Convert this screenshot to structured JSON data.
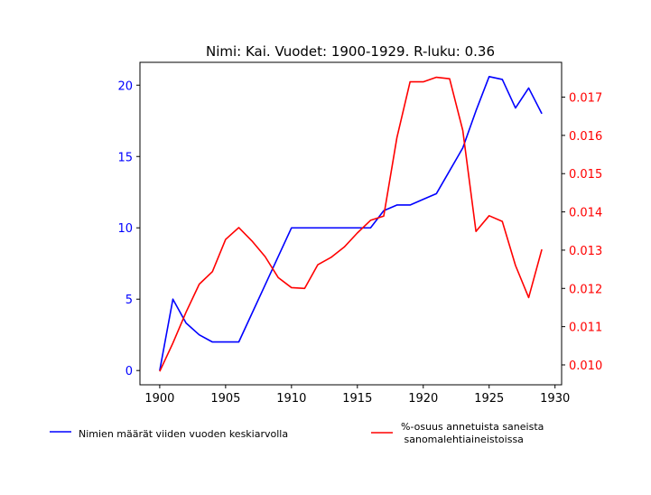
{
  "chart_data": {
    "type": "line",
    "title": "Nimi: Kai. Vuodet: 1900-1929. R-luku: 0.36",
    "xlabel": "",
    "ylabel_left": "",
    "ylabel_right": "",
    "x": [
      1900,
      1901,
      1902,
      1903,
      1904,
      1905,
      1906,
      1907,
      1908,
      1909,
      1910,
      1911,
      1912,
      1913,
      1914,
      1915,
      1916,
      1917,
      1918,
      1919,
      1920,
      1921,
      1922,
      1923,
      1924,
      1925,
      1926,
      1927,
      1928,
      1929
    ],
    "xlim": [
      1898.5,
      1930.5
    ],
    "xticks": [
      1900,
      1905,
      1910,
      1915,
      1920,
      1925,
      1930
    ],
    "left_axis": {
      "ylim": [
        -1.0,
        21.6
      ],
      "ticks": [
        0,
        5,
        10,
        15,
        20
      ],
      "color": "#0000ff"
    },
    "right_axis": {
      "ylim": [
        0.00948,
        0.01791
      ],
      "ticks": [
        0.01,
        0.011,
        0.012,
        0.013,
        0.014,
        0.015,
        0.016,
        0.017
      ],
      "tick_labels": [
        "0.010",
        "0.011",
        "0.012",
        "0.013",
        "0.014",
        "0.015",
        "0.016",
        "0.017"
      ],
      "color": "#ff0000"
    },
    "series": [
      {
        "name": "Nimien määrät viiden vuoden keskiarvolla",
        "axis": "left",
        "color": "#0000ff",
        "values": [
          0,
          5.0,
          3.33,
          2.5,
          2.0,
          2.0,
          2.0,
          4.0,
          6.0,
          8.0,
          10.0,
          10.0,
          10.0,
          10.0,
          10.0,
          10.0,
          10.0,
          11.2,
          11.6,
          11.6,
          12.0,
          12.4,
          14.0,
          15.6,
          18.2,
          20.6,
          20.4,
          18.4,
          19.8,
          18.0
        ]
      },
      {
        "name": "%-osuus annetuista saneista\n sanomalehtiaineistoissa",
        "axis": "right",
        "color": "#ff0000",
        "values": [
          0.00983,
          0.01057,
          0.01138,
          0.01211,
          0.01244,
          0.01328,
          0.01359,
          0.01324,
          0.01283,
          0.01228,
          0.01202,
          0.012,
          0.01262,
          0.01281,
          0.01308,
          0.01345,
          0.01378,
          0.01389,
          0.01594,
          0.0174,
          0.0174,
          0.01752,
          0.01748,
          0.01613,
          0.01349,
          0.0139,
          0.01375,
          0.0126,
          0.01176,
          0.01302
        ]
      }
    ],
    "legend": {
      "placement": "bottom"
    },
    "grid": false
  }
}
